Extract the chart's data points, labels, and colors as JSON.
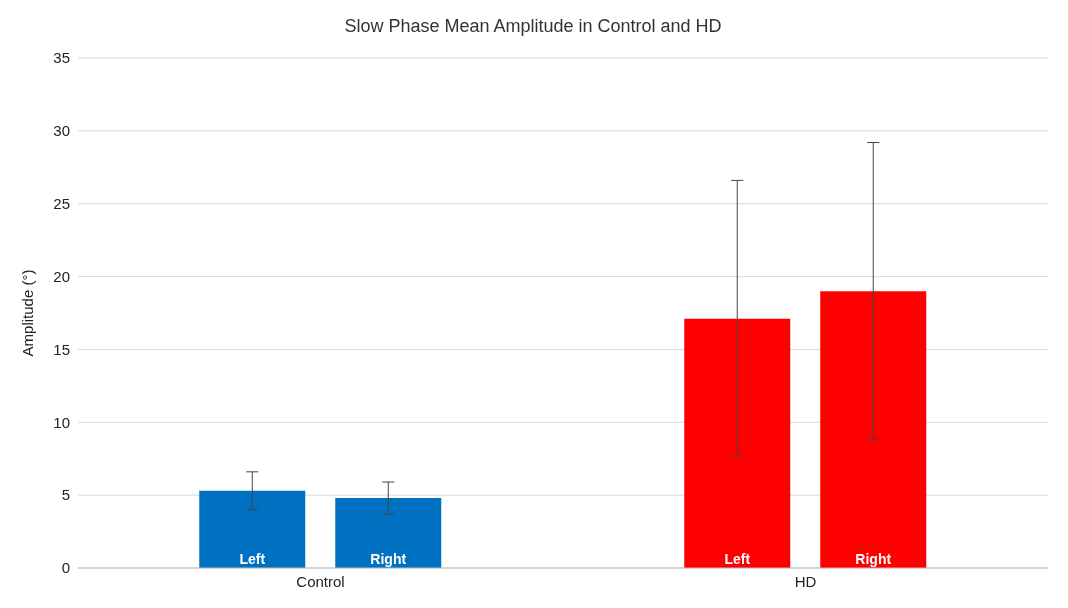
{
  "chart_data": {
    "type": "bar",
    "title": "Slow Phase Mean Amplitude in Control and HD",
    "ylabel": "Amplitude (°)",
    "categories": [
      "Control",
      "HD"
    ],
    "series": [
      {
        "name": "Left",
        "colors": [
          "#0070c0",
          "#ff0000"
        ],
        "values": [
          5.3,
          17.1
        ],
        "errors": [
          [
            4.0,
            6.6
          ],
          [
            7.7,
            26.6
          ]
        ]
      },
      {
        "name": "Right",
        "colors": [
          "#0070c0",
          "#ff0000"
        ],
        "values": [
          4.8,
          19.0
        ],
        "errors": [
          [
            3.7,
            5.9
          ],
          [
            8.8,
            29.2
          ]
        ]
      }
    ],
    "ylim": [
      0,
      35
    ],
    "yticks": [
      0,
      5,
      10,
      15,
      20,
      25,
      30,
      35
    ],
    "grid": "y",
    "legend": false
  }
}
